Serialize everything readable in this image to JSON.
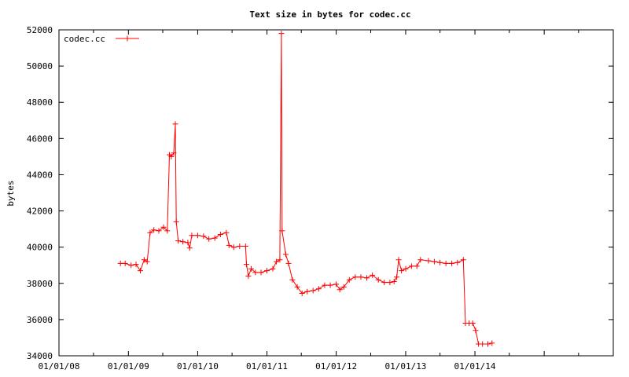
{
  "chart_data": {
    "type": "line",
    "title": "Text size in bytes for codec.cc",
    "xlabel": "",
    "ylabel": "bytes",
    "ylim": [
      34000,
      52000
    ],
    "yticks": [
      34000,
      36000,
      38000,
      40000,
      42000,
      44000,
      46000,
      48000,
      50000,
      52000
    ],
    "xlim": [
      "2008-01-01",
      "2015-12-31"
    ],
    "xticks": [
      "01/01/08",
      "01/01/09",
      "01/01/10",
      "01/01/11",
      "01/01/12",
      "01/01/13",
      "01/01/14"
    ],
    "grid": false,
    "legend": {
      "position": "top-left",
      "entries": [
        "codec.cc"
      ]
    },
    "colors": {
      "series": "#ff0000",
      "axes": "#000000"
    },
    "series": [
      {
        "name": "codec.cc",
        "marker": "plus",
        "points": [
          [
            "2008-11-20",
            39100
          ],
          [
            "2008-12-15",
            39100
          ],
          [
            "2009-01-15",
            39000
          ],
          [
            "2009-02-10",
            39050
          ],
          [
            "2009-03-05",
            38700
          ],
          [
            "2009-03-25",
            39300
          ],
          [
            "2009-04-10",
            39200
          ],
          [
            "2009-04-25",
            40800
          ],
          [
            "2009-05-15",
            40950
          ],
          [
            "2009-06-10",
            40900
          ],
          [
            "2009-07-05",
            41100
          ],
          [
            "2009-07-25",
            40900
          ],
          [
            "2009-08-05",
            45100
          ],
          [
            "2009-08-15",
            45000
          ],
          [
            "2009-08-28",
            45200
          ],
          [
            "2009-09-05",
            46800
          ],
          [
            "2009-09-10",
            41400
          ],
          [
            "2009-09-20",
            40350
          ],
          [
            "2009-10-15",
            40300
          ],
          [
            "2009-11-10",
            40250
          ],
          [
            "2009-11-20",
            39950
          ],
          [
            "2009-12-01",
            40650
          ],
          [
            "2010-01-01",
            40650
          ],
          [
            "2010-02-01",
            40600
          ],
          [
            "2010-03-01",
            40450
          ],
          [
            "2010-04-01",
            40500
          ],
          [
            "2010-05-01",
            40700
          ],
          [
            "2010-06-01",
            40800
          ],
          [
            "2010-06-15",
            40100
          ],
          [
            "2010-07-10",
            40000
          ],
          [
            "2010-08-10",
            40050
          ],
          [
            "2010-09-10",
            40050
          ],
          [
            "2010-09-15",
            39050
          ],
          [
            "2010-09-25",
            38400
          ],
          [
            "2010-10-10",
            38800
          ],
          [
            "2010-11-01",
            38600
          ],
          [
            "2010-12-01",
            38600
          ],
          [
            "2011-01-01",
            38700
          ],
          [
            "2011-02-01",
            38800
          ],
          [
            "2011-02-20",
            39200
          ],
          [
            "2011-03-10",
            39300
          ],
          [
            "2011-03-18",
            51800
          ],
          [
            "2011-03-22",
            40900
          ],
          [
            "2011-04-10",
            39600
          ],
          [
            "2011-04-25",
            39100
          ],
          [
            "2011-05-15",
            38200
          ],
          [
            "2011-06-10",
            37800
          ],
          [
            "2011-07-05",
            37450
          ],
          [
            "2011-08-01",
            37550
          ],
          [
            "2011-09-01",
            37600
          ],
          [
            "2011-10-01",
            37700
          ],
          [
            "2011-11-01",
            37900
          ],
          [
            "2011-12-01",
            37900
          ],
          [
            "2012-01-01",
            37950
          ],
          [
            "2012-01-20",
            37650
          ],
          [
            "2012-02-10",
            37800
          ],
          [
            "2012-03-10",
            38200
          ],
          [
            "2012-04-10",
            38350
          ],
          [
            "2012-05-10",
            38350
          ],
          [
            "2012-06-10",
            38300
          ],
          [
            "2012-07-10",
            38450
          ],
          [
            "2012-08-10",
            38200
          ],
          [
            "2012-09-10",
            38050
          ],
          [
            "2012-10-10",
            38050
          ],
          [
            "2012-11-01",
            38100
          ],
          [
            "2012-11-15",
            38350
          ],
          [
            "2012-11-25",
            39300
          ],
          [
            "2012-12-10",
            38700
          ],
          [
            "2013-01-01",
            38800
          ],
          [
            "2013-02-01",
            38950
          ],
          [
            "2013-03-01",
            38950
          ],
          [
            "2013-03-20",
            39300
          ],
          [
            "2013-05-01",
            39250
          ],
          [
            "2013-06-01",
            39200
          ],
          [
            "2013-07-01",
            39150
          ],
          [
            "2013-08-01",
            39100
          ],
          [
            "2013-09-01",
            39100
          ],
          [
            "2013-10-01",
            39150
          ],
          [
            "2013-11-01",
            39300
          ],
          [
            "2013-11-12",
            35800
          ],
          [
            "2013-12-01",
            35800
          ],
          [
            "2013-12-20",
            35800
          ],
          [
            "2014-01-05",
            35400
          ],
          [
            "2014-01-20",
            34650
          ],
          [
            "2014-02-10",
            34650
          ],
          [
            "2014-03-10",
            34650
          ],
          [
            "2014-04-01",
            34700
          ]
        ]
      }
    ]
  }
}
